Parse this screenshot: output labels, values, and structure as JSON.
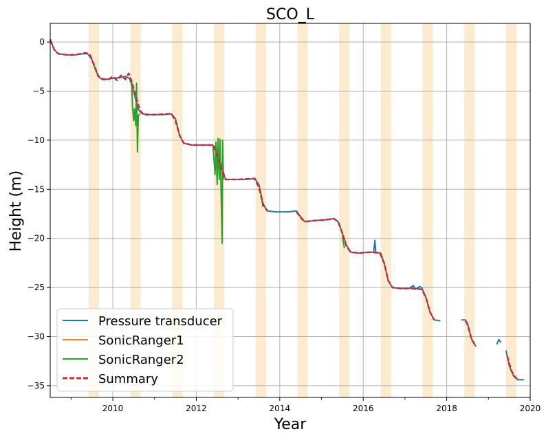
{
  "chart_data": {
    "type": "line",
    "title": "SCO_L",
    "xlabel": "Year",
    "ylabel": "Height (m)",
    "xlim": [
      2008.5,
      2020.0
    ],
    "ylim": [
      -36.2,
      1.9
    ],
    "grid": true,
    "legend_position": "lower-left",
    "x_ticks": [
      2010,
      2012,
      2014,
      2016,
      2018,
      2020
    ],
    "x_tick_labels": [
      "2010",
      "2012",
      "2014",
      "2016",
      "2018",
      "2020"
    ],
    "y_ticks": [
      0,
      -5,
      -10,
      -15,
      -20,
      -25,
      -30,
      -35
    ],
    "y_tick_labels": [
      "0",
      "−5",
      "−10",
      "−15",
      "−20",
      "−25",
      "−30",
      "−35"
    ],
    "shaded_periods": [
      [
        2009.42,
        2009.67
      ],
      [
        2010.42,
        2010.67
      ],
      [
        2011.42,
        2011.67
      ],
      [
        2012.42,
        2012.67
      ],
      [
        2013.42,
        2013.67
      ],
      [
        2014.42,
        2014.67
      ],
      [
        2015.42,
        2015.67
      ],
      [
        2016.42,
        2016.67
      ],
      [
        2017.42,
        2017.67
      ],
      [
        2018.42,
        2018.67
      ],
      [
        2019.42,
        2019.67
      ]
    ],
    "shade_color": "#fdebd0",
    "series": [
      {
        "name": "Pressure transducer",
        "color": "#1f77b4",
        "style": "solid",
        "segments": [
          [
            [
              2008.5,
              0.3
            ],
            [
              2008.6,
              -0.8
            ],
            [
              2008.7,
              -1.2
            ],
            [
              2008.9,
              -1.3
            ],
            [
              2009.1,
              -1.3
            ],
            [
              2009.3,
              -1.2
            ],
            [
              2009.4,
              -1.2
            ],
            [
              2009.5,
              -1.8
            ],
            [
              2009.6,
              -3.0
            ],
            [
              2009.7,
              -3.7
            ],
            [
              2009.85,
              -3.8
            ],
            [
              2010.0,
              -3.7
            ],
            [
              2010.2,
              -3.6
            ],
            [
              2010.3,
              -3.5
            ],
            [
              2010.4,
              -3.7
            ],
            [
              2010.5,
              -5.0
            ],
            [
              2010.6,
              -6.8
            ],
            [
              2010.7,
              -7.3
            ],
            [
              2010.9,
              -7.4
            ],
            [
              2011.2,
              -7.4
            ],
            [
              2011.4,
              -7.3
            ],
            [
              2011.5,
              -7.8
            ],
            [
              2011.6,
              -9.5
            ],
            [
              2011.7,
              -10.3
            ],
            [
              2011.9,
              -10.5
            ],
            [
              2012.2,
              -10.5
            ],
            [
              2012.4,
              -10.5
            ],
            [
              2012.5,
              -11.0
            ],
            [
              2012.6,
              -12.5
            ],
            [
              2012.7,
              -14.0
            ],
            [
              2012.9,
              -14.0
            ],
            [
              2013.2,
              -14.0
            ],
            [
              2013.4,
              -13.9
            ],
            [
              2013.5,
              -14.5
            ],
            [
              2013.6,
              -16.5
            ],
            [
              2013.7,
              -17.2
            ],
            [
              2013.9,
              -17.3
            ],
            [
              2014.2,
              -17.3
            ],
            [
              2014.4,
              -17.2
            ],
            [
              2014.5,
              -17.8
            ],
            [
              2014.6,
              -18.3
            ],
            [
              2014.8,
              -18.2
            ],
            [
              2015.1,
              -18.1
            ],
            [
              2015.3,
              -18.0
            ],
            [
              2015.4,
              -18.3
            ],
            [
              2015.5,
              -19.5
            ],
            [
              2015.6,
              -20.7
            ],
            [
              2015.7,
              -21.4
            ],
            [
              2015.9,
              -21.5
            ],
            [
              2016.1,
              -21.4
            ],
            [
              2016.25,
              -21.4
            ],
            [
              2016.28,
              -20.2
            ],
            [
              2016.3,
              -21.4
            ],
            [
              2016.42,
              -21.5
            ],
            [
              2016.5,
              -22.5
            ],
            [
              2016.6,
              -24.3
            ],
            [
              2016.7,
              -25.0
            ],
            [
              2016.9,
              -25.1
            ],
            [
              2017.1,
              -25.1
            ],
            [
              2017.2,
              -24.8
            ],
            [
              2017.25,
              -25.2
            ],
            [
              2017.35,
              -24.9
            ],
            [
              2017.4,
              -25.0
            ],
            [
              2017.5,
              -26.0
            ],
            [
              2017.6,
              -27.5
            ],
            [
              2017.7,
              -28.3
            ],
            [
              2017.85,
              -28.4
            ]
          ],
          [
            [
              2018.35,
              -28.3
            ],
            [
              2018.45,
              -28.3
            ],
            [
              2018.5,
              -28.7
            ],
            [
              2018.6,
              -30.3
            ],
            [
              2018.7,
              -31.0
            ]
          ],
          [
            [
              2019.2,
              -30.8
            ],
            [
              2019.25,
              -30.3
            ],
            [
              2019.3,
              -30.6
            ]
          ],
          [
            [
              2019.42,
              -31.4
            ],
            [
              2019.5,
              -33.0
            ],
            [
              2019.6,
              -34.0
            ],
            [
              2019.7,
              -34.4
            ],
            [
              2019.85,
              -34.4
            ]
          ]
        ]
      },
      {
        "name": "SonicRanger1",
        "color": "#ff7f0e",
        "style": "solid",
        "segments": []
      },
      {
        "name": "SonicRanger2",
        "color": "#2ca02c",
        "style": "solid",
        "segments": [
          [
            [
              2010.45,
              -4.0
            ],
            [
              2010.47,
              -6.5
            ],
            [
              2010.5,
              -8.0
            ],
            [
              2010.52,
              -6.8
            ],
            [
              2010.55,
              -8.5
            ],
            [
              2010.57,
              -4.2
            ],
            [
              2010.59,
              -11.2
            ],
            [
              2010.61,
              -7.5
            ],
            [
              2010.65,
              -7.3
            ]
          ],
          [
            [
              2012.4,
              -10.5
            ],
            [
              2012.45,
              -13.5
            ],
            [
              2012.47,
              -10.2
            ],
            [
              2012.5,
              -14.5
            ],
            [
              2012.52,
              -9.8
            ],
            [
              2012.55,
              -14.0
            ],
            [
              2012.57,
              -9.9
            ],
            [
              2012.6,
              -16.5
            ],
            [
              2012.62,
              -20.5
            ],
            [
              2012.63,
              -10.0
            ],
            [
              2012.65,
              -14.0
            ]
          ],
          [
            [
              2013.55,
              -15.5
            ],
            [
              2013.6,
              -16.8
            ]
          ],
          [
            [
              2015.5,
              -19.8
            ],
            [
              2015.55,
              -21.0
            ]
          ]
        ]
      },
      {
        "name": "Summary",
        "color": "#d62728",
        "style": "dashed",
        "segments": [
          [
            [
              2008.5,
              0.2
            ],
            [
              2008.6,
              -0.8
            ],
            [
              2008.7,
              -1.2
            ],
            [
              2008.9,
              -1.3
            ],
            [
              2009.1,
              -1.3
            ],
            [
              2009.35,
              -1.1
            ],
            [
              2009.45,
              -1.3
            ],
            [
              2009.55,
              -2.3
            ],
            [
              2009.65,
              -3.5
            ],
            [
              2009.75,
              -3.8
            ],
            [
              2009.9,
              -3.8
            ],
            [
              2010.0,
              -3.5
            ],
            [
              2010.1,
              -3.9
            ],
            [
              2010.2,
              -3.4
            ],
            [
              2010.3,
              -3.8
            ],
            [
              2010.38,
              -3.2
            ],
            [
              2010.45,
              -4.0
            ],
            [
              2010.55,
              -5.5
            ],
            [
              2010.65,
              -7.0
            ],
            [
              2010.75,
              -7.4
            ],
            [
              2011.0,
              -7.4
            ],
            [
              2011.4,
              -7.3
            ],
            [
              2011.5,
              -8.0
            ],
            [
              2011.6,
              -9.5
            ],
            [
              2011.7,
              -10.3
            ],
            [
              2011.9,
              -10.5
            ],
            [
              2012.4,
              -10.5
            ],
            [
              2012.5,
              -11.5
            ],
            [
              2012.6,
              -13.0
            ],
            [
              2012.7,
              -14.0
            ],
            [
              2013.0,
              -14.0
            ],
            [
              2013.4,
              -13.9
            ],
            [
              2013.5,
              -14.8
            ],
            [
              2013.6,
              -16.5
            ],
            [
              2013.7,
              -17.2
            ]
          ],
          [
            [
              2014.4,
              -17.3
            ],
            [
              2014.5,
              -17.9
            ],
            [
              2014.6,
              -18.3
            ],
            [
              2014.8,
              -18.2
            ],
            [
              2015.1,
              -18.1
            ],
            [
              2015.3,
              -18.0
            ],
            [
              2015.4,
              -18.3
            ],
            [
              2015.5,
              -19.5
            ],
            [
              2015.6,
              -20.8
            ],
            [
              2015.7,
              -21.4
            ],
            [
              2015.9,
              -21.5
            ],
            [
              2016.2,
              -21.4
            ],
            [
              2016.4,
              -21.5
            ],
            [
              2016.5,
              -22.5
            ],
            [
              2016.6,
              -24.3
            ],
            [
              2016.7,
              -25.0
            ],
            [
              2016.9,
              -25.1
            ],
            [
              2017.2,
              -25.1
            ],
            [
              2017.4,
              -25.2
            ],
            [
              2017.5,
              -26.0
            ],
            [
              2017.6,
              -27.5
            ],
            [
              2017.7,
              -28.3
            ]
          ],
          [
            [
              2018.45,
              -28.4
            ],
            [
              2018.5,
              -28.8
            ],
            [
              2018.6,
              -30.3
            ],
            [
              2018.7,
              -31.0
            ]
          ],
          [
            [
              2019.45,
              -32.0
            ],
            [
              2019.55,
              -33.5
            ],
            [
              2019.65,
              -34.2
            ],
            [
              2019.7,
              -34.3
            ]
          ]
        ]
      }
    ]
  }
}
